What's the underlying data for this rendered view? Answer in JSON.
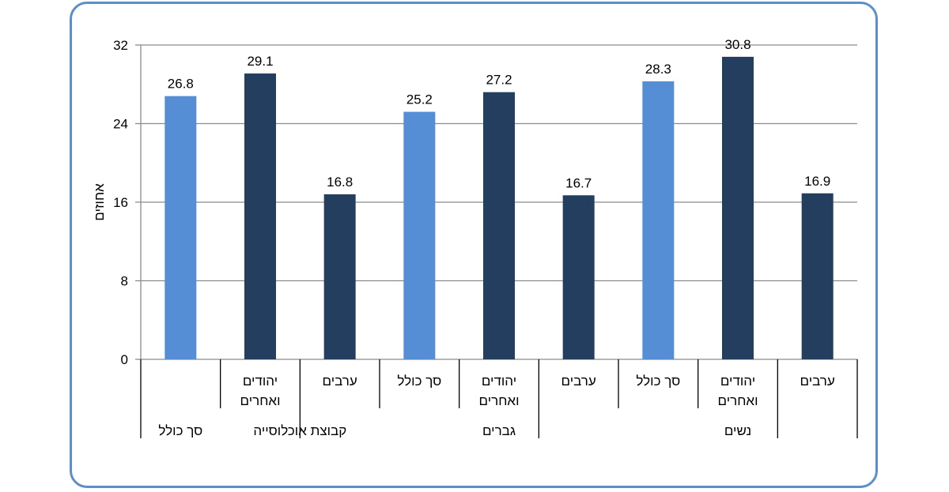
{
  "chart_data": {
    "type": "bar",
    "ylabel": "אחוזים",
    "ylim": [
      0,
      32
    ],
    "yticks": [
      "0",
      "8",
      "16",
      "24",
      "32"
    ],
    "grid": true,
    "legend": "none",
    "colors": {
      "light": "#558ed5",
      "dark": "#243e5f"
    },
    "bars": [
      {
        "label_lines": [
          ""
        ],
        "value": 26.8,
        "value_label": "26.8",
        "color": "light"
      },
      {
        "label_lines": [
          "יהודים",
          "ואחרים"
        ],
        "value": 29.1,
        "value_label": "29.1",
        "color": "dark"
      },
      {
        "label_lines": [
          "ערבים"
        ],
        "value": 16.8,
        "value_label": "16.8",
        "color": "dark"
      },
      {
        "label_lines": [
          "סך כולל"
        ],
        "value": 25.2,
        "value_label": "25.2",
        "color": "light"
      },
      {
        "label_lines": [
          "יהודים",
          "ואחרים"
        ],
        "value": 27.2,
        "value_label": "27.2",
        "color": "dark"
      },
      {
        "label_lines": [
          "ערבים"
        ],
        "value": 16.7,
        "value_label": "16.7",
        "color": "dark"
      },
      {
        "label_lines": [
          "סך כולל"
        ],
        "value": 28.3,
        "value_label": "28.3",
        "color": "light"
      },
      {
        "label_lines": [
          "יהודים",
          "ואחרים"
        ],
        "value": 30.8,
        "value_label": "30.8",
        "color": "dark"
      },
      {
        "label_lines": [
          "ערבים"
        ],
        "value": 16.9,
        "value_label": "16.9",
        "color": "dark"
      }
    ],
    "groups": [
      {
        "label": "סך כולל",
        "start": 0,
        "end": 0
      },
      {
        "label": "קבוצת אוכלוסייה",
        "start": 1,
        "end": 2
      },
      {
        "label": "גברים",
        "start": 3,
        "end": 5
      },
      {
        "label": "נשים",
        "start": 6,
        "end": 8
      }
    ],
    "subgroup_dividers": [
      1,
      2,
      3,
      4,
      5,
      6,
      7,
      8
    ],
    "short_dividers": [
      2,
      5,
      8
    ]
  }
}
